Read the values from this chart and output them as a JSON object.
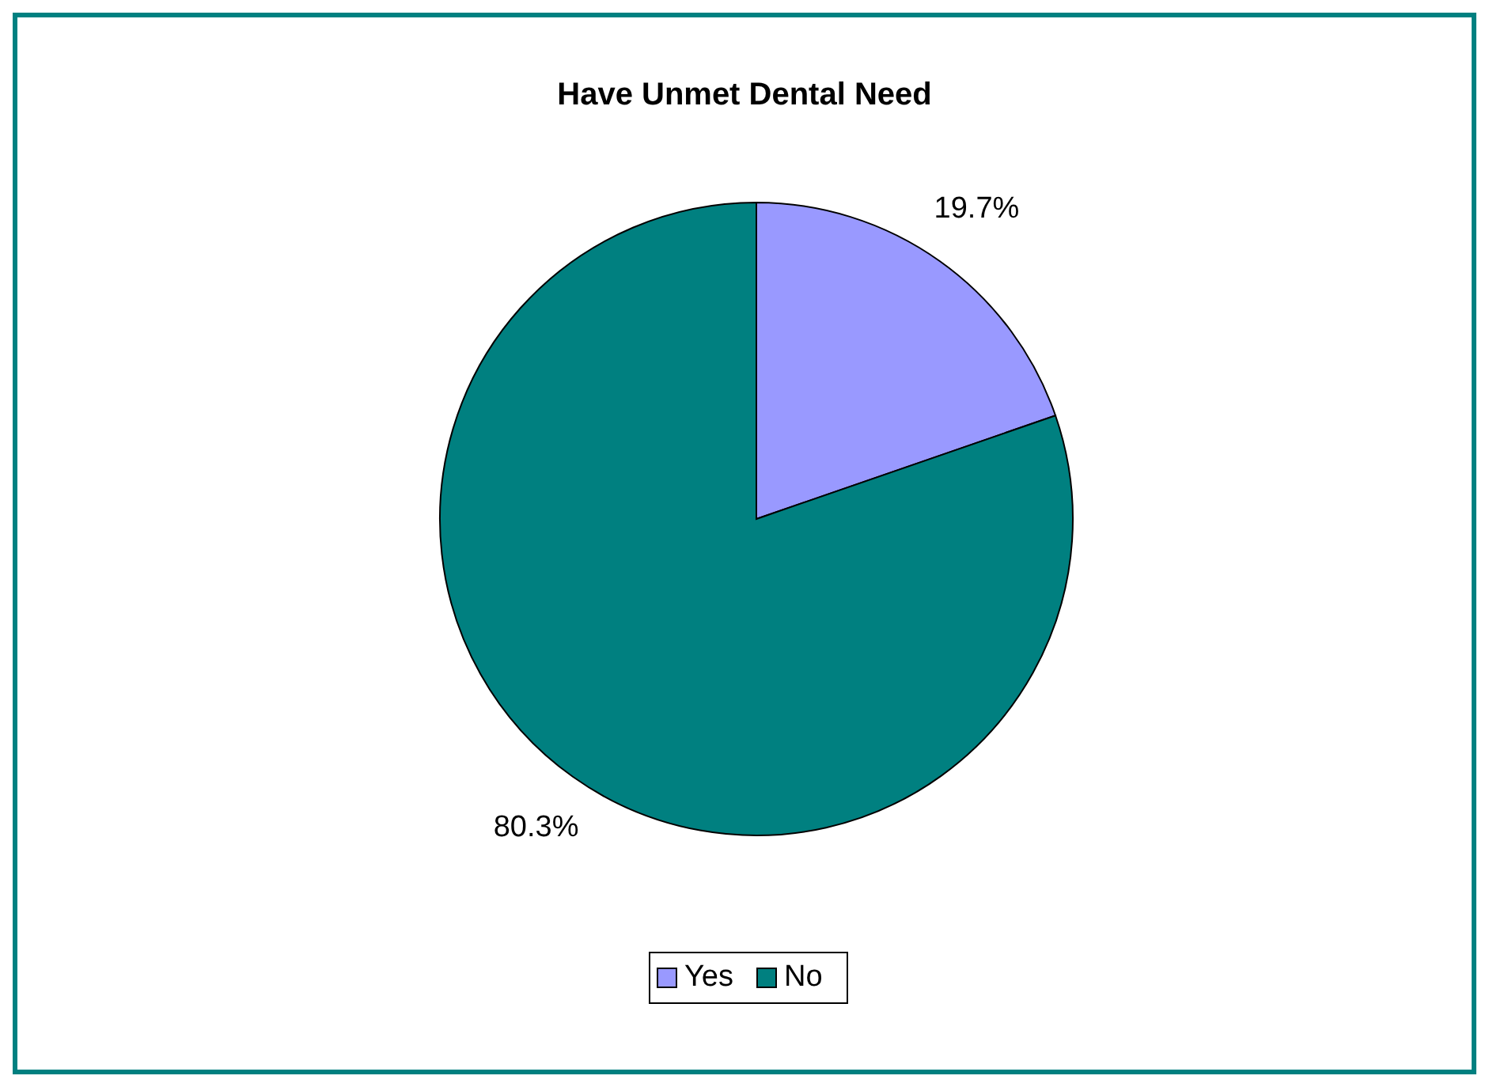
{
  "chart_data": {
    "type": "pie",
    "title": "Have Unmet Dental Need",
    "categories": [
      "Yes",
      "No"
    ],
    "values": [
      19.7,
      80.3
    ],
    "colors": [
      "#9999ff",
      "#008080"
    ],
    "value_labels": [
      "19.7%",
      "80.3%"
    ],
    "legend": "bottom"
  }
}
